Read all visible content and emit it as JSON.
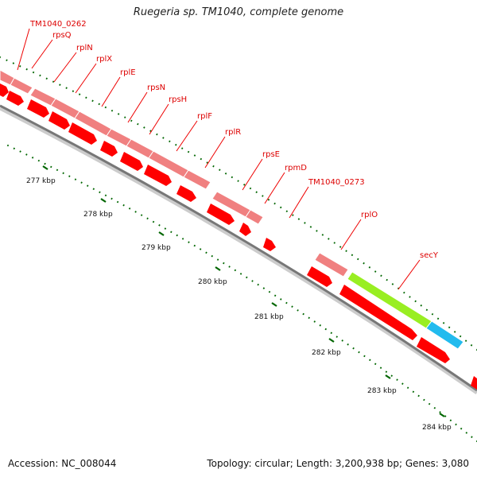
{
  "title": "Ruegeria sp. TM1040, complete genome",
  "footer": {
    "accession": "Accession: NC_008044",
    "summary": "Topology: circular; Length: 3,200,938 bp; Genes: 3,080"
  },
  "colors": {
    "gene_light": "#f08080",
    "cds_red": "#ff0000",
    "highlight_green": "#99ee22",
    "highlight_blue": "#22bbee",
    "label_red": "#dd0000",
    "tick_green": "#006600",
    "backbone": "#888888"
  },
  "ticks": [
    {
      "label": "277 kbp",
      "kbp": 277
    },
    {
      "label": "278 kbp",
      "kbp": 278
    },
    {
      "label": "279 kbp",
      "kbp": 279
    },
    {
      "label": "280 kbp",
      "kbp": 280
    },
    {
      "label": "281 kbp",
      "kbp": 281
    },
    {
      "label": "282 kbp",
      "kbp": 282
    },
    {
      "label": "283 kbp",
      "kbp": 283
    },
    {
      "label": "284 kbp",
      "kbp": 284
    }
  ],
  "genes": [
    {
      "name": "TM1040_0262"
    },
    {
      "name": "rpsQ"
    },
    {
      "name": "rplN"
    },
    {
      "name": "rplX"
    },
    {
      "name": "rplE"
    },
    {
      "name": "rpsN"
    },
    {
      "name": "rpsH"
    },
    {
      "name": "rplF"
    },
    {
      "name": "rplR"
    },
    {
      "name": "rpsE"
    },
    {
      "name": "rpmD"
    },
    {
      "name": "TM1040_0273"
    },
    {
      "name": "rplO"
    },
    {
      "name": "secY"
    }
  ]
}
